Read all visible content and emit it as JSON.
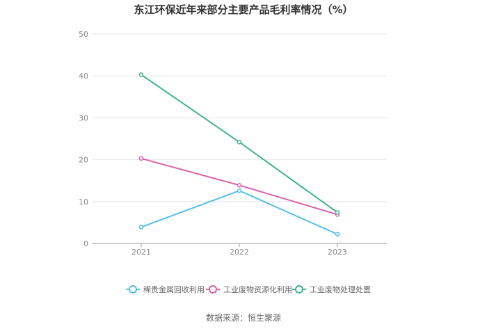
{
  "chart_data": {
    "type": "line",
    "title": "东江环保近年来部分主要产品毛利率情况（%）",
    "x": [
      "2021",
      "2022",
      "2023"
    ],
    "ylim": [
      0,
      50
    ],
    "yticks": [
      "0",
      "10",
      "20",
      "30",
      "40",
      "50"
    ],
    "grid": true,
    "legend_position": "bottom",
    "series": [
      {
        "name": "稀贵金属回收利用",
        "color": "#4fc0e8",
        "values": [
          3.9,
          12.6,
          2.2
        ]
      },
      {
        "name": "工业废物资源化利用",
        "color": "#d95fa8",
        "values": [
          20.3,
          13.9,
          6.9
        ]
      },
      {
        "name": "工业废物处理处置",
        "color": "#3db38e",
        "values": [
          40.3,
          24.2,
          7.4
        ]
      }
    ]
  },
  "source_text": "数据来源：恒生聚源"
}
